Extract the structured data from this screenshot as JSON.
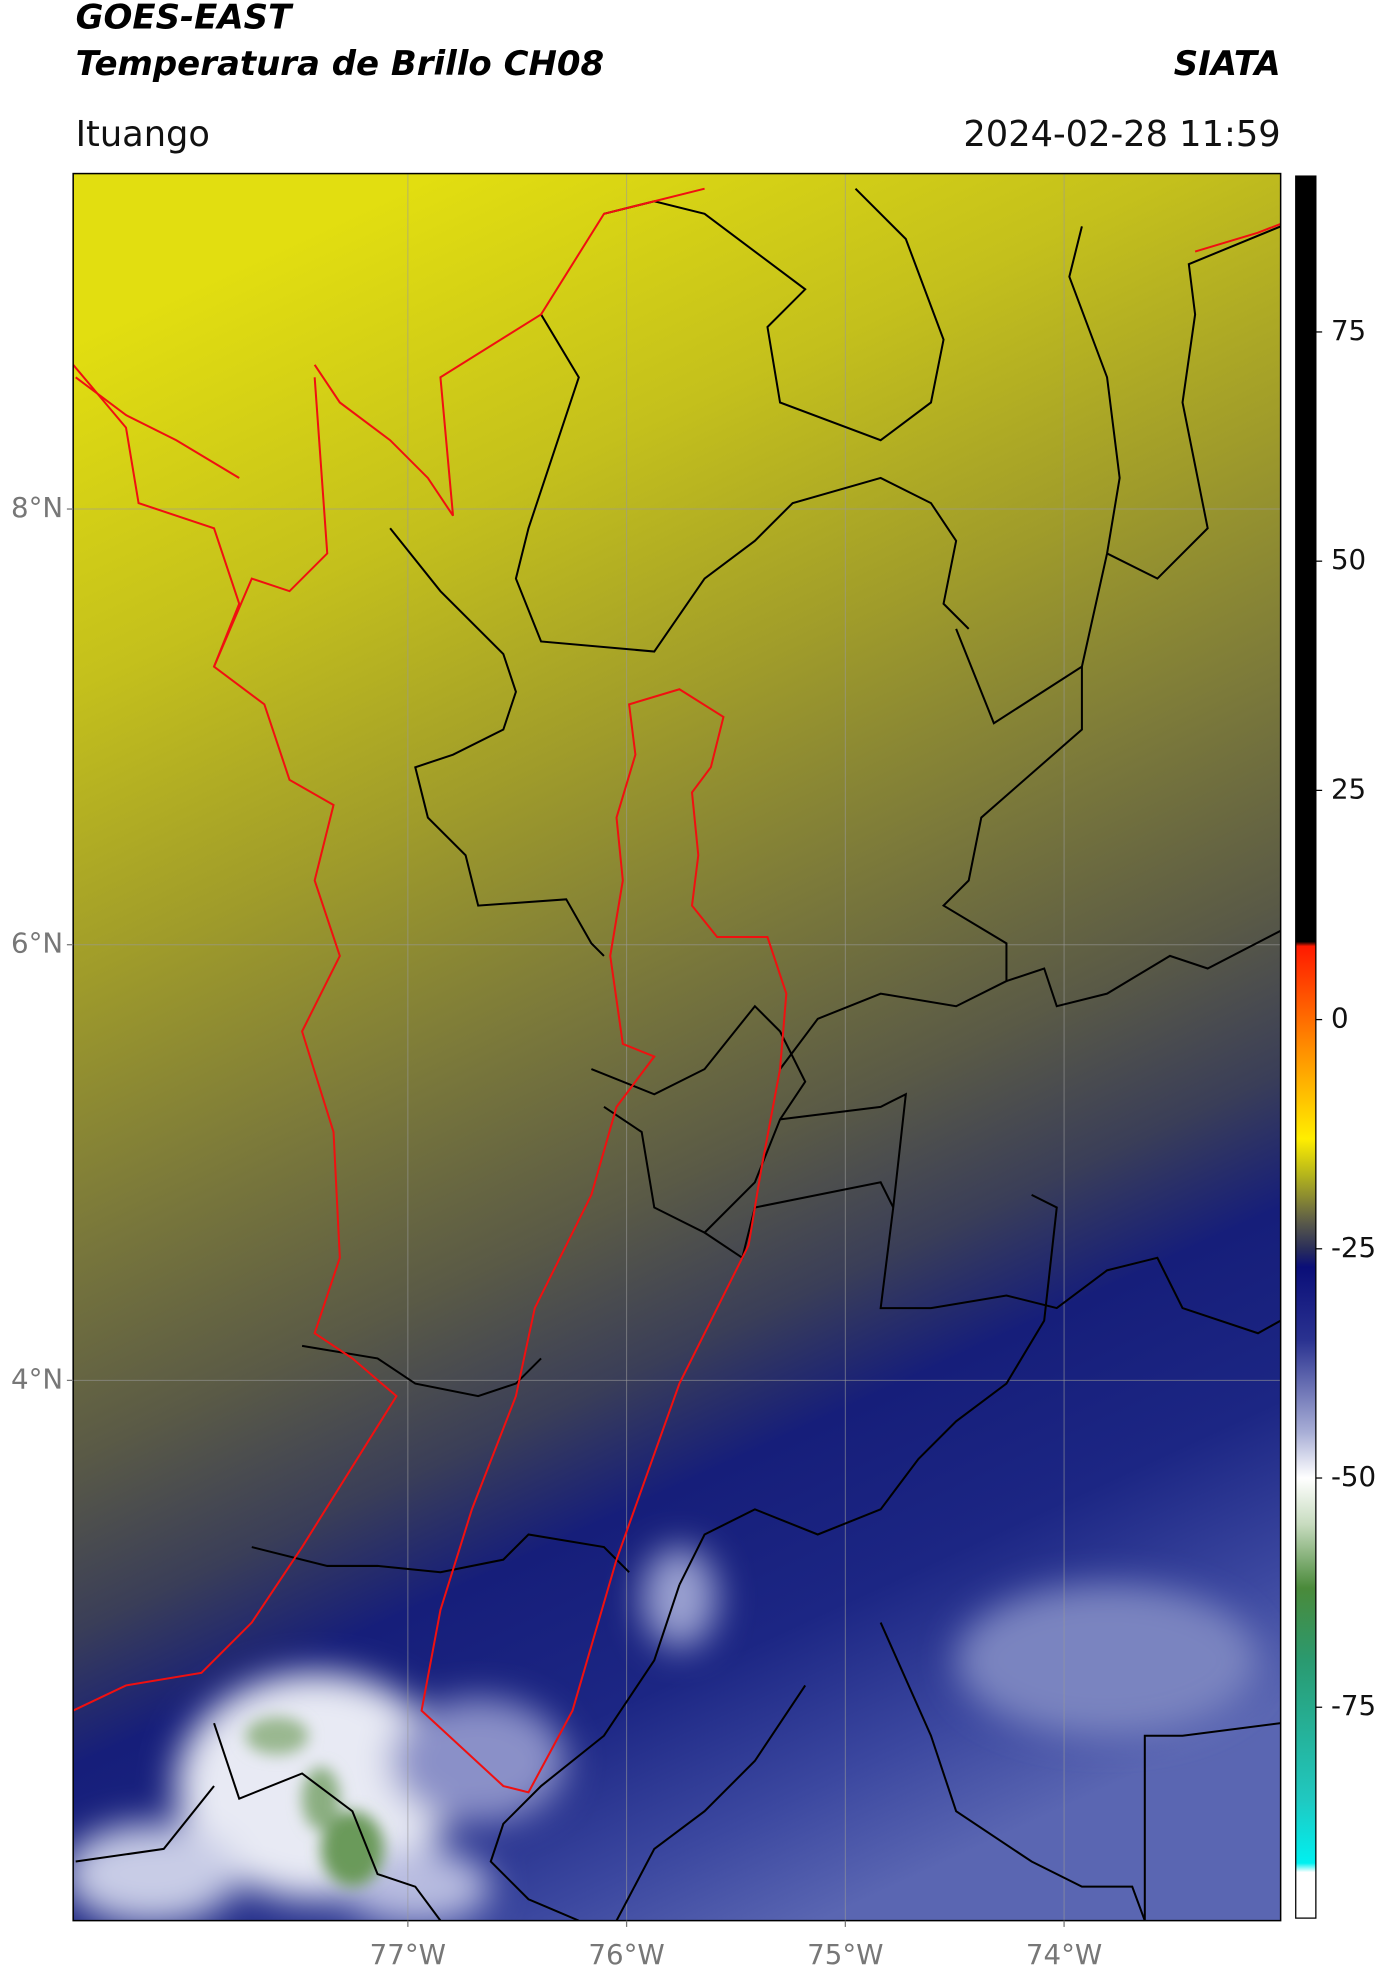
{
  "header": {
    "title": "GOES-EAST",
    "subtitle": "Temperatura de Brillo CH08",
    "organization": "SIATA",
    "location": "Ituango",
    "datetime": "2024-02-28 11:59"
  },
  "map": {
    "xlim": [
      -78.53,
      -73.01
    ],
    "ylim": [
      1.52,
      9.54
    ],
    "xticks": [
      {
        "value": -77,
        "label": "77°W"
      },
      {
        "value": -76,
        "label": "76°W"
      },
      {
        "value": -75,
        "label": "75°W"
      },
      {
        "value": -74,
        "label": "74°W"
      }
    ],
    "yticks": [
      {
        "value": 8,
        "label": "8°N"
      },
      {
        "value": 6,
        "label": "6°N"
      },
      {
        "value": 4,
        "label": "4°N"
      }
    ],
    "grid": true
  },
  "colorbar": {
    "lim": [
      -98,
      92
    ],
    "ticks": [
      75,
      50,
      25,
      0,
      -25,
      -50,
      -75
    ]
  }
}
